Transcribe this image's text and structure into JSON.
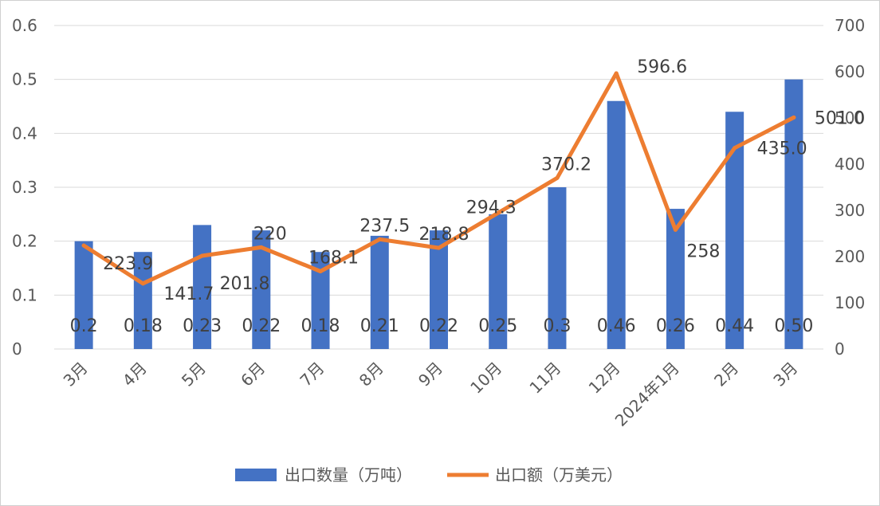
{
  "chart_data": {
    "type": "bar",
    "categories": [
      "3月",
      "4月",
      "5月",
      "6月",
      "7月",
      "8月",
      "9月",
      "10月",
      "11月",
      "12月",
      "2024年1月",
      "2月",
      "3月"
    ],
    "series": [
      {
        "name": "出口数量（万吨）",
        "type": "bar",
        "axis": "left",
        "color": "#4472C4",
        "values": [
          0.2,
          0.18,
          0.23,
          0.22,
          0.18,
          0.21,
          0.22,
          0.25,
          0.3,
          0.46,
          0.26,
          0.44,
          0.5
        ],
        "labels": [
          "0.2",
          "0.18",
          "0.23",
          "0.22",
          "0.18",
          "0.21",
          "0.22",
          "0.25",
          "0.3",
          "0.46",
          "0.26",
          "0.44",
          "0.50"
        ]
      },
      {
        "name": "出口额（万美元）",
        "type": "line",
        "axis": "right",
        "color": "#ED7D31",
        "values": [
          223.9,
          141.7,
          201.8,
          220,
          168.1,
          237.5,
          218.8,
          294.3,
          370.2,
          596.6,
          258,
          435.0,
          501.0
        ],
        "labels": [
          "223.9",
          "141.7",
          "201.8",
          "220",
          "168.1",
          "237.5",
          "218.8",
          "294.3",
          "370.2",
          "596.6",
          "258",
          "435.0",
          "501.0"
        ]
      }
    ],
    "y_left": {
      "min": 0,
      "max": 0.6,
      "ticks": [
        "0",
        "0.1",
        "0.2",
        "0.3",
        "0.4",
        "0.5",
        "0.6"
      ]
    },
    "y_right": {
      "min": 0,
      "max": 700,
      "ticks": [
        "0",
        "100",
        "200",
        "300",
        "400",
        "500",
        "600",
        "700"
      ]
    },
    "grid": true,
    "legend": "bottom"
  }
}
